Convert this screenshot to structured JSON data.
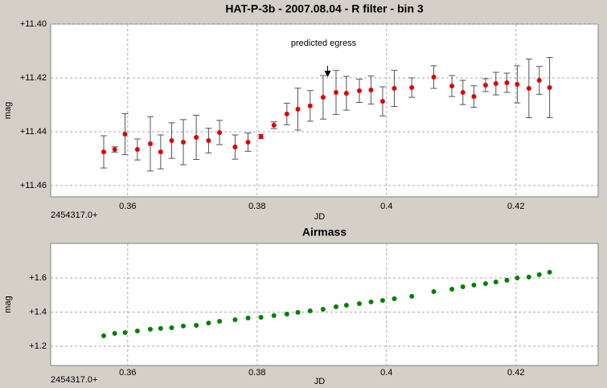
{
  "chart_data": [
    {
      "type": "scatter",
      "title": "HAT-P-3b - 2007.08.04 - R filter - bin 3",
      "xlabel": "JD",
      "x_offset_label": "2454317.0+",
      "ylabel": "mag",
      "x": [
        0.3563,
        0.358,
        0.3596,
        0.3615,
        0.3635,
        0.3651,
        0.3668,
        0.3686,
        0.3706,
        0.3725,
        0.3742,
        0.3766,
        0.3786,
        0.3806,
        0.3826,
        0.3846,
        0.3863,
        0.3882,
        0.3902,
        0.3922,
        0.3938,
        0.3958,
        0.3976,
        0.3994,
        0.4012,
        0.4039,
        0.4073,
        0.4101,
        0.4118,
        0.4135,
        0.4153,
        0.4169,
        0.4186,
        0.4202,
        0.422,
        0.4236,
        0.4252
      ],
      "series": [
        {
          "color": "#e00000",
          "error_color": "#555555",
          "values": [
            11.4475,
            11.4466,
            11.4409,
            11.4466,
            11.4445,
            11.4475,
            11.4433,
            11.4439,
            11.4421,
            11.4433,
            11.4403,
            11.4457,
            11.4439,
            11.4418,
            11.4376,
            11.4334,
            11.4316,
            11.4304,
            11.4272,
            11.4254,
            11.4257,
            11.4248,
            11.4245,
            11.4287,
            11.4239,
            11.4236,
            11.4197,
            11.423,
            11.4254,
            11.4269,
            11.4227,
            11.4221,
            11.4218,
            11.4224,
            11.4239,
            11.4209,
            11.4236
          ],
          "errors": [
            0.006,
            0.001,
            0.0076,
            0.0039,
            0.0101,
            0.0063,
            0.0066,
            0.0084,
            0.0082,
            0.0046,
            0.0045,
            0.0045,
            0.0034,
            0.0008,
            0.0013,
            0.004,
            0.0078,
            0.0057,
            0.0081,
            0.0082,
            0.0063,
            0.0043,
            0.0052,
            0.0054,
            0.0067,
            0.0036,
            0.0042,
            0.0039,
            0.0045,
            0.004,
            0.0024,
            0.0042,
            0.0036,
            0.0069,
            0.0109,
            0.0052,
            0.0112
          ]
        }
      ],
      "annotations": [
        {
          "text": "predicted egress",
          "x": 0.3909
        }
      ],
      "xlim": [
        0.3481,
        0.4327
      ],
      "xticks": [
        0.36,
        0.38,
        0.4,
        0.42
      ],
      "ylim": [
        11.4642,
        11.4
      ],
      "yticks": [
        {
          "value": 11.4,
          "label": "+11.40"
        },
        {
          "value": 11.42,
          "label": "+11.42"
        },
        {
          "value": 11.44,
          "label": "+11.44"
        },
        {
          "value": 11.46,
          "label": "+11.46"
        }
      ],
      "grid": true
    },
    {
      "type": "scatter",
      "title": "Airmass",
      "xlabel": "JD",
      "x_offset_label": "2454317.0+",
      "ylabel": "mag",
      "x": [
        0.3563,
        0.358,
        0.3596,
        0.3615,
        0.3635,
        0.3651,
        0.3668,
        0.3686,
        0.3706,
        0.3725,
        0.3742,
        0.3766,
        0.3786,
        0.3806,
        0.3826,
        0.3846,
        0.3863,
        0.3882,
        0.3902,
        0.3922,
        0.3938,
        0.3958,
        0.3976,
        0.3994,
        0.4012,
        0.4039,
        0.4073,
        0.4101,
        0.4118,
        0.4135,
        0.4153,
        0.4169,
        0.4186,
        0.4202,
        0.422,
        0.4236,
        0.4252
      ],
      "series": [
        {
          "color": "#008000",
          "values": [
            1.261,
            1.275,
            1.28,
            1.289,
            1.299,
            1.304,
            1.308,
            1.318,
            1.322,
            1.336,
            1.346,
            1.355,
            1.365,
            1.369,
            1.379,
            1.388,
            1.398,
            1.407,
            1.416,
            1.431,
            1.44,
            1.449,
            1.459,
            1.468,
            1.478,
            1.492,
            1.52,
            1.534,
            1.548,
            1.558,
            1.567,
            1.576,
            1.586,
            1.6,
            1.605,
            1.619,
            1.633
          ]
        }
      ],
      "xlim": [
        0.3481,
        0.4327
      ],
      "xticks": [
        0.36,
        0.38,
        0.4,
        0.42
      ],
      "ylim": [
        1.087,
        1.802
      ],
      "yticks": [
        {
          "value": 1.2,
          "label": "+1.2"
        },
        {
          "value": 1.4,
          "label": "+1.4"
        },
        {
          "value": 1.6,
          "label": "+1.6"
        }
      ],
      "grid": true
    }
  ]
}
